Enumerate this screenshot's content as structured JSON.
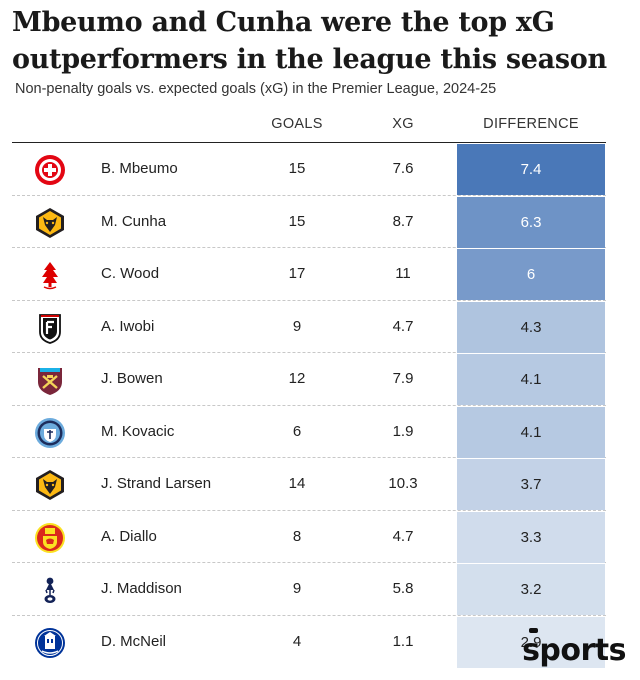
{
  "header": {
    "title": "Mbeumo and Cunha were the top xG outperformers in the league this season",
    "subtitle": "Non-penalty goals vs. expected goals (xG) in the Premier League, 2024-25"
  },
  "columns": {
    "goals": "GOALS",
    "xg": "XG",
    "difference": "DIFFERENCE"
  },
  "brand": "sports",
  "colors": {
    "diff_max": "#4a78b8",
    "diff_min": "#dde6f1"
  },
  "chart_data": {
    "type": "table",
    "title": "Mbeumo and Cunha were the top xG outperformers in the league this season",
    "subtitle": "Non-penalty goals vs. expected goals (xG) in the Premier League, 2024-25",
    "columns": [
      "GOALS",
      "XG",
      "DIFFERENCE"
    ],
    "rows": [
      {
        "player": "B. Mbeumo",
        "club_icon": "brentford-badge-icon",
        "goals": "15",
        "xg": "7.6",
        "diff": "7.4"
      },
      {
        "player": "M. Cunha",
        "club_icon": "wolves-badge-icon",
        "goals": "15",
        "xg": "8.7",
        "diff": "6.3"
      },
      {
        "player": "C. Wood",
        "club_icon": "nottingham-forest-badge-icon",
        "goals": "17",
        "xg": "11",
        "diff": "6"
      },
      {
        "player": "A. Iwobi",
        "club_icon": "fulham-badge-icon",
        "goals": "9",
        "xg": "4.7",
        "diff": "4.3"
      },
      {
        "player": "J. Bowen",
        "club_icon": "west-ham-badge-icon",
        "goals": "12",
        "xg": "7.9",
        "diff": "4.1"
      },
      {
        "player": "M. Kovacic",
        "club_icon": "man-city-badge-icon",
        "goals": "6",
        "xg": "1.9",
        "diff": "4.1"
      },
      {
        "player": "J. Strand Larsen",
        "club_icon": "wolves-badge-icon",
        "goals": "14",
        "xg": "10.3",
        "diff": "3.7"
      },
      {
        "player": "A. Diallo",
        "club_icon": "man-united-badge-icon",
        "goals": "8",
        "xg": "4.7",
        "diff": "3.3"
      },
      {
        "player": "J. Maddison",
        "club_icon": "tottenham-badge-icon",
        "goals": "9",
        "xg": "5.8",
        "diff": "3.2"
      },
      {
        "player": "D. McNeil",
        "club_icon": "everton-badge-icon",
        "goals": "4",
        "xg": "1.1",
        "diff": "2.9"
      }
    ]
  }
}
